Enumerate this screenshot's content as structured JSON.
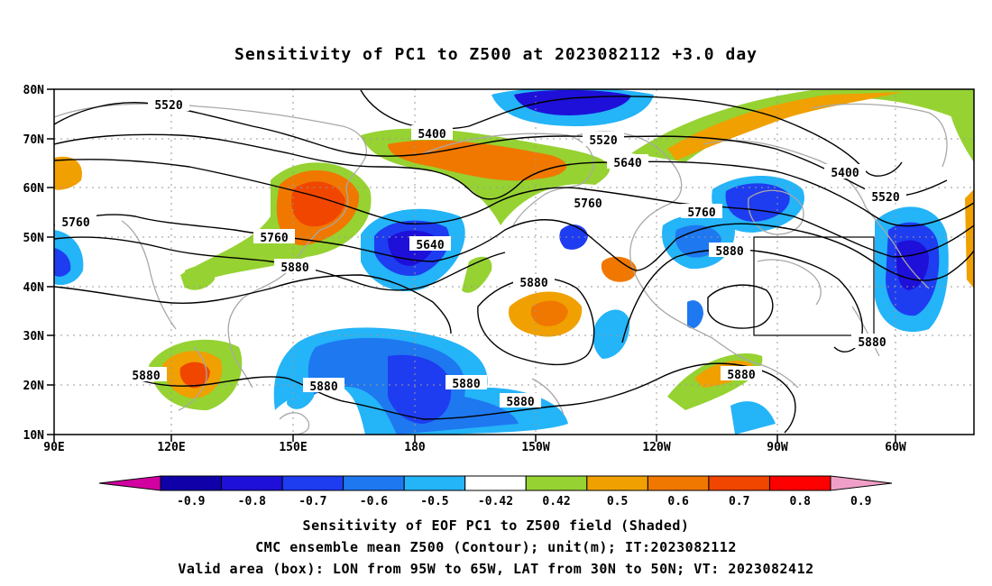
{
  "title": "Sensitivity of PC1 to Z500 at 2023082112 +3.0 day",
  "lat_labels": [
    "80N",
    "70N",
    "60N",
    "50N",
    "40N",
    "30N",
    "20N",
    "10N"
  ],
  "lon_labels": [
    "90E",
    "120E",
    "150E",
    "180",
    "150W",
    "120W",
    "90W",
    "60W"
  ],
  "contour_labels": {
    "c5520a": "5520",
    "c5400a": "5400",
    "c5520b": "5520",
    "c5640a": "5640",
    "c5400b": "5400",
    "c5520c": "5520",
    "c5760a": "5760",
    "c5760b": "5760",
    "c5640b": "5640",
    "c5760c": "5760",
    "c5760d": "5760",
    "c5880a": "5880",
    "c5880b": "5880",
    "c5880c": "5880",
    "c5880d": "5880",
    "c5880e": "5880",
    "c5880f": "5880",
    "c5880g": "5880",
    "c5880h": "5880",
    "c5880i": "5880"
  },
  "colorbar": {
    "labels": [
      "-0.9",
      "-0.8",
      "-0.7",
      "-0.6",
      "-0.5",
      "-0.42",
      "0.42",
      "0.5",
      "0.6",
      "0.7",
      "0.8",
      "0.9"
    ],
    "colors": [
      "#0f00a8",
      "#1e10d8",
      "#1e3cf0",
      "#1e78f0",
      "#24b4f8",
      "#ffffff",
      "#96d232",
      "#f0a000",
      "#f07800",
      "#f04600",
      "#ff0000"
    ],
    "low_end_color": "#d200a0",
    "high_end_color": "#f0a0c8"
  },
  "footer": {
    "line1": "Sensitivity of EOF PC1 to Z500 field (Shaded)",
    "line2": "CMC ensemble mean Z500 (Contour); unit(m); IT:2023082112",
    "line3": "Valid area (box): LON from 95W to 65W, LAT from 30N to 50N; VT: 2023082412"
  }
}
